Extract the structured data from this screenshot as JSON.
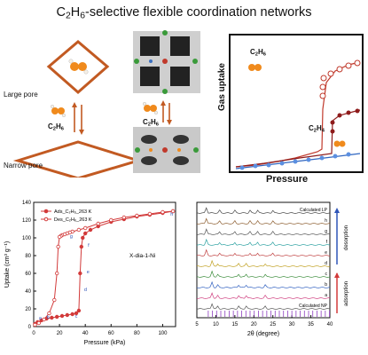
{
  "title": {
    "pre": "C",
    "sub1": "2",
    "mid": "H",
    "sub2": "6",
    "post": "-selective flexible coordination networks"
  },
  "schematic": {
    "large_pore_label": "Large pore",
    "narrow_pore_label": "Narrow pore",
    "gas_left": {
      "pre": "C",
      "sub1": "2",
      "mid": "H",
      "sub2": "6"
    },
    "gas_center": {
      "pre": "C",
      "sub1": "2",
      "mid": "H",
      "sub2": "6"
    }
  },
  "panel_iso": {
    "ylabel": "Gas uptake",
    "xlabel": "Pressure",
    "label_c2h6": {
      "pre": "C",
      "sub1": "2",
      "mid": "H",
      "sub2": "6"
    },
    "label_c2h4": {
      "pre": "C",
      "sub1": "2",
      "mid": "H",
      "sub2": "4"
    }
  },
  "chart_data": [
    {
      "type": "scatter",
      "ylabel": "Uptake (cm³ g⁻¹)",
      "xlabel": "Pressure (kPa)",
      "xlim": [
        0,
        110
      ],
      "ylim": [
        0,
        140
      ],
      "xticks": [
        "0",
        "20",
        "40",
        "60",
        "80",
        "100"
      ],
      "yticks": [
        "0",
        "20",
        "40",
        "60",
        "80",
        "100",
        "120",
        "140"
      ],
      "annotation": "X-dia-1-Ni",
      "legend": [
        "Ads_C₂H₆_263 K",
        "Des_C₂H₆_263 K"
      ],
      "series": [
        {
          "name": "Ads_C₂H₆_263 K",
          "x": [
            1,
            3,
            6,
            10,
            14,
            18,
            22,
            26,
            30,
            33,
            35,
            36,
            37,
            38,
            40,
            44,
            50,
            60,
            70,
            80,
            90,
            100,
            108
          ],
          "y": [
            3,
            5,
            7,
            9,
            10,
            11,
            12,
            13,
            14,
            15,
            18,
            60,
            90,
            100,
            105,
            109,
            113,
            118,
            121,
            124,
            126,
            128,
            130
          ]
        },
        {
          "name": "Des_C₂H₆_263 K",
          "x": [
            108,
            100,
            90,
            80,
            70,
            60,
            50,
            40,
            35,
            30,
            28,
            26,
            24,
            22,
            21,
            20,
            19,
            18,
            16,
            12,
            8,
            4,
            1
          ],
          "y": [
            130,
            129,
            127,
            125,
            123,
            120,
            116,
            111,
            109,
            107,
            106,
            105,
            104,
            103,
            102,
            101,
            90,
            60,
            30,
            15,
            8,
            4,
            2
          ]
        }
      ],
      "point_labels": [
        "a",
        "b",
        "c",
        "d",
        "e",
        "f",
        "g",
        "h"
      ]
    },
    {
      "type": "line",
      "ylabel": "",
      "xlabel": "2θ (degree)",
      "xlim": [
        5,
        40
      ],
      "xticks": [
        "5",
        "10",
        "15",
        "20",
        "25",
        "30",
        "35",
        "40"
      ],
      "trace_labels": [
        "Calculated LP",
        "h",
        "g",
        "f",
        "e",
        "d",
        "c",
        "b",
        "a",
        "Calculated NP"
      ],
      "side_labels": [
        "desorption",
        "adsorption"
      ]
    }
  ]
}
